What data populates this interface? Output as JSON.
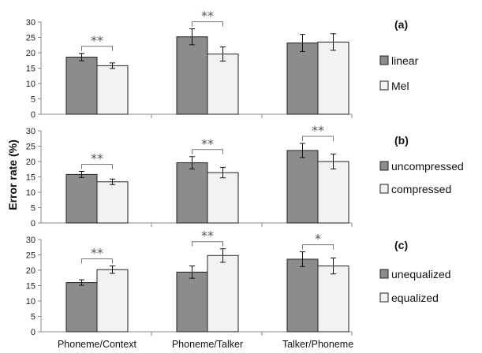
{
  "figure": {
    "ylabel": "Error rate (%)",
    "categories": [
      "Phoneme/Context",
      "Phoneme/Talker",
      "Talker/Phoneme"
    ]
  },
  "chart_data": [
    {
      "type": "bar",
      "panel_label": "(a)",
      "categories": [
        "Phoneme/Context",
        "Phoneme/Talker",
        "Talker/Phoneme"
      ],
      "series": [
        {
          "name": "linear",
          "color": "#8c8c8c",
          "values": [
            18.6,
            25.2,
            23.2
          ],
          "errors": [
            1.2,
            2.6,
            2.8
          ]
        },
        {
          "name": "Mel",
          "color": "#f2f2f2",
          "values": [
            15.8,
            19.6,
            23.5
          ],
          "errors": [
            0.9,
            2.3,
            2.7
          ]
        }
      ],
      "significance": [
        "**",
        "**",
        ""
      ],
      "ylim": [
        0,
        30
      ],
      "yticks": [
        0,
        5,
        10,
        15,
        20,
        25,
        30
      ],
      "legend_position": "right"
    },
    {
      "type": "bar",
      "panel_label": "(b)",
      "categories": [
        "Phoneme/Context",
        "Phoneme/Talker",
        "Talker/Phoneme"
      ],
      "series": [
        {
          "name": "uncompressed",
          "color": "#8c8c8c",
          "values": [
            15.8,
            19.6,
            23.6
          ],
          "errors": [
            1.0,
            2.0,
            2.3
          ]
        },
        {
          "name": "compressed",
          "color": "#f2f2f2",
          "values": [
            13.4,
            16.4,
            20.0
          ],
          "errors": [
            0.9,
            1.7,
            2.4
          ]
        }
      ],
      "significance": [
        "**",
        "**",
        "**"
      ],
      "ylim": [
        0,
        30
      ],
      "yticks": [
        0,
        5,
        10,
        15,
        20,
        25,
        30
      ],
      "legend_position": "right"
    },
    {
      "type": "bar",
      "panel_label": "(c)",
      "categories": [
        "Phoneme/Context",
        "Phoneme/Talker",
        "Talker/Phoneme"
      ],
      "series": [
        {
          "name": "unequalized",
          "color": "#8c8c8c",
          "values": [
            16.0,
            19.4,
            23.6
          ],
          "errors": [
            0.9,
            2.0,
            2.4
          ]
        },
        {
          "name": "equalized",
          "color": "#f2f2f2",
          "values": [
            20.2,
            24.8,
            21.4
          ],
          "errors": [
            1.2,
            2.2,
            2.6
          ]
        }
      ],
      "significance": [
        "**",
        "**",
        "*"
      ],
      "ylim": [
        0,
        30
      ],
      "yticks": [
        0,
        5,
        10,
        15,
        20,
        25,
        30
      ],
      "legend_position": "right"
    }
  ]
}
